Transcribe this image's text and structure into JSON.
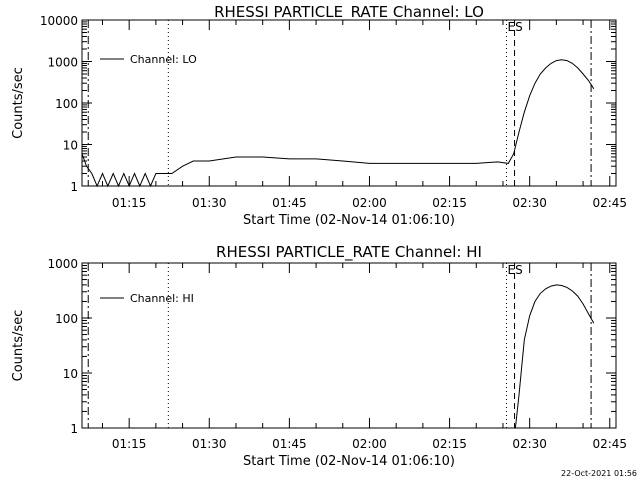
{
  "timestamp": "22-Oct-2021 01:56",
  "chart_data": [
    {
      "type": "line",
      "title": "RHESSI PARTICLE_RATE Channel: LO",
      "xlabel": "Start Time (02-Nov-14 01:06:10)",
      "ylabel": "Counts/sec",
      "scale": "log",
      "xlim": [
        "01:06:10",
        "02:46:10"
      ],
      "ylim": [
        1,
        10000
      ],
      "x_ticks": [
        "01:15",
        "01:30",
        "01:45",
        "02:00",
        "02:15",
        "02:30",
        "02:45"
      ],
      "y_ticks": [
        "1",
        "10",
        "100",
        "1000",
        "10000"
      ],
      "legend": "top-left",
      "series": [
        {
          "name": "Channel: LO",
          "x": [
            "01:06:10",
            "01:07:00",
            "01:08:00",
            "01:09:00",
            "01:10:00",
            "01:11:00",
            "01:12:00",
            "01:13:00",
            "01:14:00",
            "01:15:00",
            "01:16:00",
            "01:17:00",
            "01:18:00",
            "01:19:00",
            "01:20:00",
            "01:21:00",
            "01:22:00",
            "01:23:00",
            "01:25:00",
            "01:27:00",
            "01:30:00",
            "01:35:00",
            "01:40:00",
            "01:45:00",
            "01:50:00",
            "01:55:00",
            "02:00:00",
            "02:05:00",
            "02:10:00",
            "02:15:00",
            "02:20:00",
            "02:24:00",
            "02:26:00",
            "02:27:00",
            "02:28:00",
            "02:29:00",
            "02:30:00",
            "02:31:00",
            "02:32:00",
            "02:33:00",
            "02:34:00",
            "02:35:00",
            "02:36:00",
            "02:37:00",
            "02:38:00",
            "02:39:00",
            "02:40:00",
            "02:41:00",
            "02:42:00"
          ],
          "values": [
            6,
            3,
            2,
            1,
            2,
            1,
            2,
            1,
            2,
            1,
            2,
            1,
            2,
            1,
            2,
            2,
            2,
            2,
            3,
            4,
            4,
            5,
            5,
            4.5,
            4.5,
            4,
            3.5,
            3.5,
            3.5,
            3.5,
            3.5,
            3.8,
            3.5,
            6,
            20,
            60,
            150,
            300,
            500,
            700,
            900,
            1050,
            1100,
            1050,
            900,
            700,
            500,
            350,
            220
          ]
        }
      ],
      "markers": [
        {
          "label": "",
          "time": "01:07:20",
          "style": "dash-dot"
        },
        {
          "label": "",
          "time": "01:22:20",
          "style": "dotted"
        },
        {
          "label": "ES",
          "time": "02:25:40",
          "style": "dotted"
        },
        {
          "label": "",
          "time": "02:27:10",
          "style": "dashed"
        },
        {
          "label": "",
          "time": "02:41:30",
          "style": "dash-dot"
        }
      ]
    },
    {
      "type": "line",
      "title": "RHESSI PARTICLE_RATE Channel: HI",
      "xlabel": "Start Time (02-Nov-14 01:06:10)",
      "ylabel": "Counts/sec",
      "scale": "log",
      "xlim": [
        "01:06:10",
        "02:46:10"
      ],
      "ylim": [
        1,
        1000
      ],
      "x_ticks": [
        "01:15",
        "01:30",
        "01:45",
        "02:00",
        "02:15",
        "02:30",
        "02:45"
      ],
      "y_ticks": [
        "1",
        "10",
        "100",
        "1000"
      ],
      "legend": "top-left",
      "series": [
        {
          "name": "Channel: HI",
          "x": [
            "02:27:20",
            "02:28:00",
            "02:29:00",
            "02:30:00",
            "02:31:00",
            "02:32:00",
            "02:33:00",
            "02:34:00",
            "02:35:00",
            "02:36:00",
            "02:37:00",
            "02:38:00",
            "02:39:00",
            "02:40:00",
            "02:41:00",
            "02:42:00"
          ],
          "values": [
            1,
            4,
            40,
            110,
            200,
            280,
            340,
            380,
            400,
            390,
            360,
            310,
            250,
            180,
            120,
            80
          ]
        }
      ],
      "markers": [
        {
          "label": "",
          "time": "01:07:20",
          "style": "dash-dot"
        },
        {
          "label": "",
          "time": "01:22:20",
          "style": "dotted"
        },
        {
          "label": "ES",
          "time": "02:25:40",
          "style": "dotted"
        },
        {
          "label": "",
          "time": "02:27:10",
          "style": "dashed"
        },
        {
          "label": "",
          "time": "02:41:30",
          "style": "dash-dot"
        }
      ]
    }
  ]
}
